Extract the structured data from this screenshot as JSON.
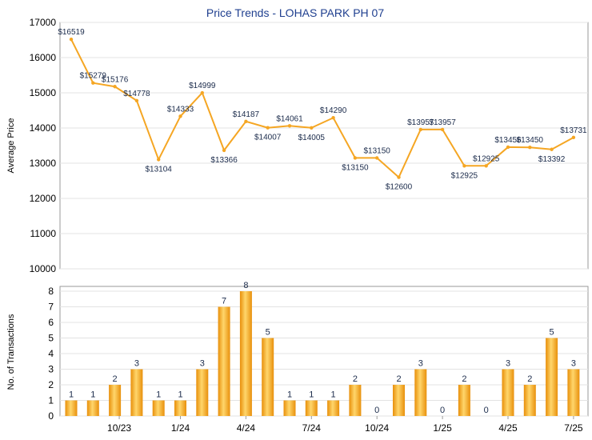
{
  "chart_data": [
    {
      "type": "line",
      "title": "Price Trends - LOHAS PARK PH 07",
      "ylabel": "Average Price",
      "ylim": [
        10000,
        17000
      ],
      "yticks": [
        10000,
        11000,
        12000,
        13000,
        14000,
        15000,
        16000,
        17000
      ],
      "grid": true,
      "color": "#f5a623",
      "series": [
        {
          "values": [
            16519,
            15279,
            15176,
            14778,
            13104,
            14333,
            14999,
            13366,
            14187,
            14007,
            14061,
            14005,
            14290,
            13150,
            13150,
            12600,
            13957,
            13957,
            12925,
            12925,
            13456,
            13450,
            13392,
            13731
          ],
          "labels": [
            "$16519",
            "$15279",
            "$15176",
            "$14778",
            "$13104",
            "$14333",
            "$14999",
            "$13366",
            "$14187",
            "$14007",
            "$14061",
            "$14005",
            "$14290",
            "$13150",
            "$13150",
            "$12600",
            "$13957",
            "$13957",
            "$12925",
            "$12925",
            "$13456",
            "$13450",
            "$13392",
            "$13731"
          ]
        }
      ]
    },
    {
      "type": "bar",
      "ylabel": "No. of Transactions",
      "ylim": [
        0,
        8
      ],
      "yticks": [
        0,
        1,
        2,
        3,
        4,
        5,
        6,
        7,
        8
      ],
      "grid": true,
      "color": "#f5a623",
      "x_tick_labels": [
        "10/23",
        "1/24",
        "4/24",
        "7/24",
        "10/24",
        "1/25",
        "4/25",
        "7/25"
      ],
      "values": [
        1,
        1,
        2,
        3,
        1,
        1,
        3,
        7,
        8,
        5,
        1,
        1,
        1,
        2,
        0,
        2,
        3,
        0,
        2,
        0,
        3,
        2,
        5,
        3
      ]
    }
  ]
}
